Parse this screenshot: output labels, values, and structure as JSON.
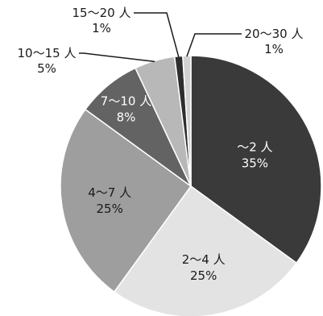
{
  "chart_data": {
    "type": "pie",
    "title": "",
    "start": "12 o'clock",
    "direction": "clockwise",
    "legend": "none (labels on slices and leader callouts)",
    "slices": [
      {
        "label": "～2 人",
        "value": 35,
        "value_label": "35%",
        "color": "#3a3a3a"
      },
      {
        "label": "2～4 人",
        "value": 25,
        "value_label": "25%",
        "color": "#e3e3e3"
      },
      {
        "label": "4～7 人",
        "value": 25,
        "value_label": "25%",
        "color": "#9e9e9e"
      },
      {
        "label": "7～10 人",
        "value": 8,
        "value_label": "8%",
        "color": "#636363"
      },
      {
        "label": "10～15 人",
        "value": 5,
        "value_label": "5%",
        "color": "#b8b8b8"
      },
      {
        "label": "15～20 人",
        "value": 1,
        "value_label": "1%",
        "color": "#2e2e2e"
      },
      {
        "label": "20～30 人",
        "value": 1,
        "value_label": "1%",
        "color": "#d2d2d2"
      }
    ]
  }
}
